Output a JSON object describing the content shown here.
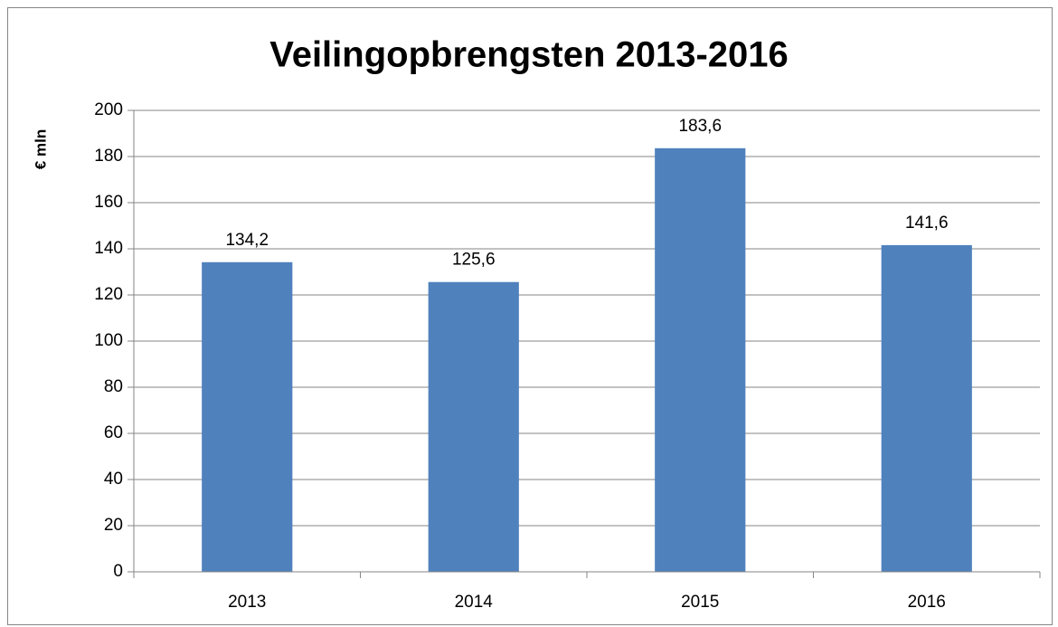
{
  "chart_data": {
    "type": "bar",
    "title": "Veilingopbrengsten 2013-2016",
    "y_label": "€ mln",
    "categories": [
      "2013",
      "2014",
      "2015",
      "2016"
    ],
    "values": [
      134.2,
      125.6,
      183.6,
      141.6
    ],
    "value_labels": [
      "134,2",
      "125,6",
      "183,6",
      "141,6"
    ],
    "color": "#4f81bd",
    "ylim": [
      0,
      200
    ],
    "yticks": [
      0,
      20,
      40,
      60,
      80,
      100,
      120,
      140,
      160,
      180,
      200
    ],
    "grid": true
  }
}
